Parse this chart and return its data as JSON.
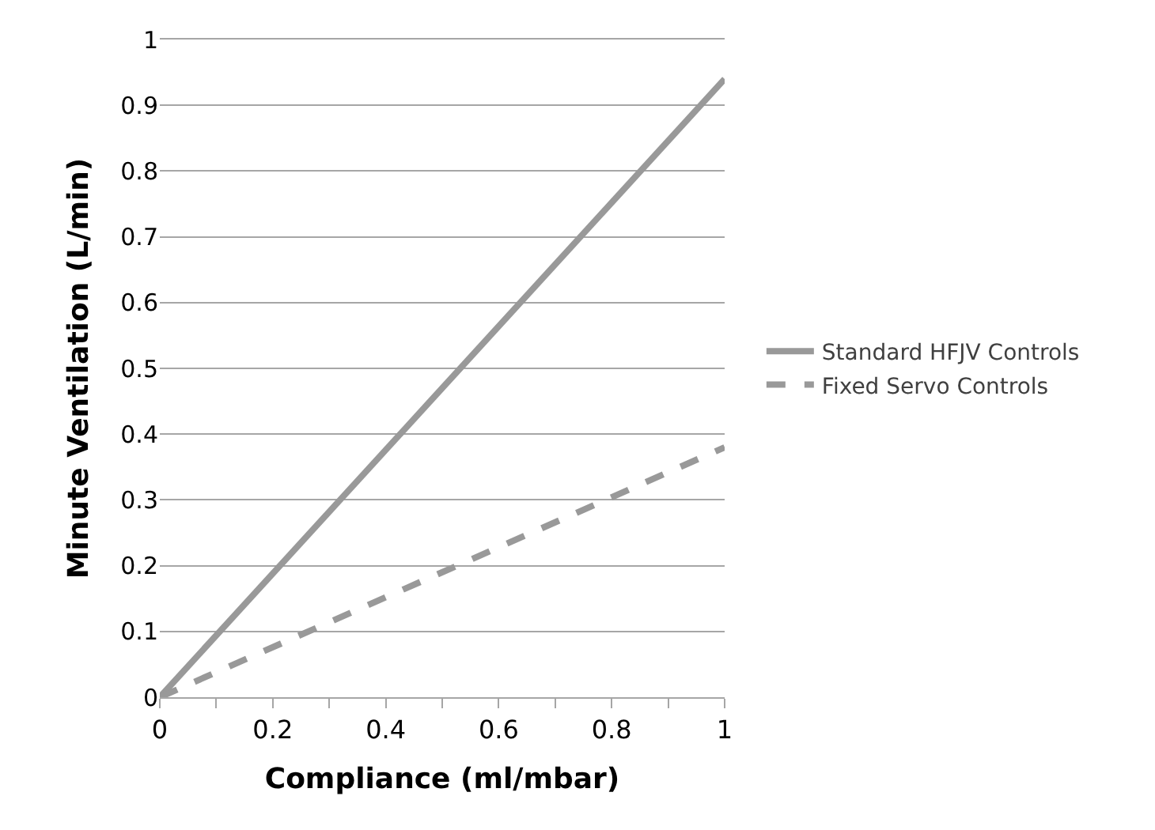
{
  "chart_data": {
    "type": "line",
    "xlabel": "Compliance (ml/mbar)",
    "ylabel": "Minute Ventilation (L/min)",
    "x": [
      0,
      1
    ],
    "series": [
      {
        "name": "Standard HFJV Controls",
        "color": "#999999",
        "values": [
          0,
          0.94
        ],
        "line_style": "solid"
      },
      {
        "name": "Fixed Servo Controls",
        "color": "#999999",
        "values": [
          0,
          0.38
        ],
        "line_style": "dashed"
      }
    ],
    "xlim": [
      0,
      1
    ],
    "xticks": [
      0,
      {
        "value": 0.1,
        "label": null
      },
      0.2,
      {
        "value": 0.3,
        "label": null
      },
      0.4,
      {
        "value": 0.5,
        "label": null
      },
      0.6,
      {
        "value": 0.7,
        "label": null
      },
      0.8,
      {
        "value": 0.9,
        "label": null
      },
      1
    ],
    "ylim": [
      0,
      1
    ],
    "yticks": [
      0,
      0.1,
      0.2,
      0.3,
      0.4,
      0.5,
      0.6,
      0.7,
      0.8,
      0.9,
      1
    ],
    "grid": "y",
    "legend": "right",
    "marker": "none"
  }
}
